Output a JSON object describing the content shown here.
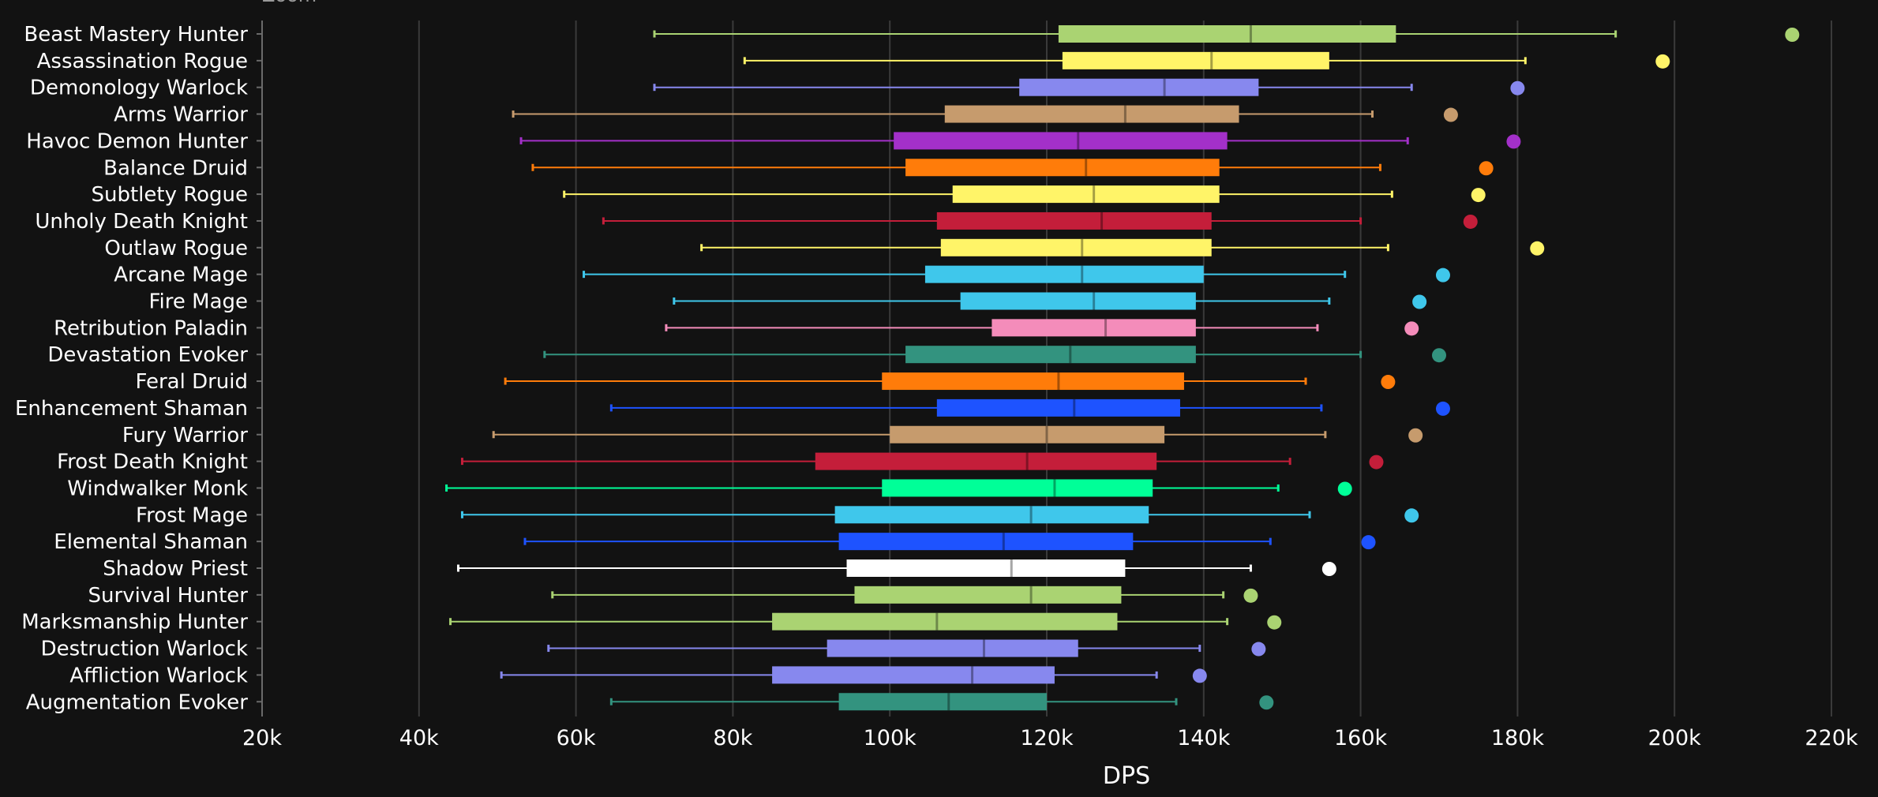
{
  "chart_data": {
    "type": "box",
    "title": "",
    "corner_label": "Zoom",
    "xlabel": "DPS",
    "ylabel": "",
    "xlim": [
      20000,
      220000
    ],
    "xticks": [
      20000,
      40000,
      60000,
      80000,
      100000,
      120000,
      140000,
      160000,
      180000,
      200000,
      220000
    ],
    "xtick_labels": [
      "20k",
      "40k",
      "60k",
      "80k",
      "100k",
      "120k",
      "140k",
      "160k",
      "180k",
      "200k",
      "220k"
    ],
    "grid": true,
    "series": [
      {
        "name": "Beast Mastery Hunter",
        "color": "#aad372",
        "min": 70000,
        "q1": 121500,
        "median": 146000,
        "q3": 164500,
        "max": 192500,
        "outlier": 215000
      },
      {
        "name": "Assassination Rogue",
        "color": "#fff468",
        "min": 81500,
        "q1": 122000,
        "median": 141000,
        "q3": 156000,
        "max": 181000,
        "outlier": 198500
      },
      {
        "name": "Demonology Warlock",
        "color": "#8788ee",
        "min": 70000,
        "q1": 116500,
        "median": 135000,
        "q3": 147000,
        "max": 166500,
        "outlier": 180000
      },
      {
        "name": "Arms Warrior",
        "color": "#c69b6d",
        "min": 52000,
        "q1": 107000,
        "median": 130000,
        "q3": 144500,
        "max": 161500,
        "outlier": 171500
      },
      {
        "name": "Havoc Demon Hunter",
        "color": "#a330c9",
        "min": 53000,
        "q1": 100500,
        "median": 124000,
        "q3": 143000,
        "max": 166000,
        "outlier": 179500
      },
      {
        "name": "Balance Druid",
        "color": "#ff7c0a",
        "min": 54500,
        "q1": 102000,
        "median": 125000,
        "q3": 142000,
        "max": 162500,
        "outlier": 176000
      },
      {
        "name": "Subtlety Rogue",
        "color": "#fff468",
        "min": 58500,
        "q1": 108000,
        "median": 126000,
        "q3": 142000,
        "max": 164000,
        "outlier": 175000
      },
      {
        "name": "Unholy Death Knight",
        "color": "#c41e3a",
        "min": 63500,
        "q1": 106000,
        "median": 127000,
        "q3": 141000,
        "max": 160000,
        "outlier": 174000
      },
      {
        "name": "Outlaw Rogue",
        "color": "#fff468",
        "min": 76000,
        "q1": 106500,
        "median": 124500,
        "q3": 141000,
        "max": 163500,
        "outlier": 182500
      },
      {
        "name": "Arcane Mage",
        "color": "#3fc7eb",
        "min": 61000,
        "q1": 104500,
        "median": 124500,
        "q3": 140000,
        "max": 158000,
        "outlier": 170500
      },
      {
        "name": "Fire Mage",
        "color": "#3fc7eb",
        "min": 72500,
        "q1": 109000,
        "median": 126000,
        "q3": 139000,
        "max": 156000,
        "outlier": 167500
      },
      {
        "name": "Retribution Paladin",
        "color": "#f48cba",
        "min": 71500,
        "q1": 113000,
        "median": 127500,
        "q3": 139000,
        "max": 154500,
        "outlier": 166500
      },
      {
        "name": "Devastation Evoker",
        "color": "#33937f",
        "min": 56000,
        "q1": 102000,
        "median": 123000,
        "q3": 139000,
        "max": 160000,
        "outlier": 170000
      },
      {
        "name": "Feral Druid",
        "color": "#ff7c0a",
        "min": 51000,
        "q1": 99000,
        "median": 121500,
        "q3": 137500,
        "max": 153000,
        "outlier": 163500
      },
      {
        "name": "Enhancement Shaman",
        "color": "#1e53ff",
        "min": 64500,
        "q1": 106000,
        "median": 123500,
        "q3": 137000,
        "max": 155000,
        "outlier": 170500
      },
      {
        "name": "Fury Warrior",
        "color": "#c69b6d",
        "min": 49500,
        "q1": 100000,
        "median": 120000,
        "q3": 135000,
        "max": 155500,
        "outlier": 167000
      },
      {
        "name": "Frost Death Knight",
        "color": "#c41e3a",
        "min": 45500,
        "q1": 90500,
        "median": 117500,
        "q3": 134000,
        "max": 151000,
        "outlier": 162000
      },
      {
        "name": "Windwalker Monk",
        "color": "#00ff98",
        "min": 43500,
        "q1": 99000,
        "median": 121000,
        "q3": 133500,
        "max": 149500,
        "outlier": 158000
      },
      {
        "name": "Frost Mage",
        "color": "#3fc7eb",
        "min": 45500,
        "q1": 93000,
        "median": 118000,
        "q3": 133000,
        "max": 153500,
        "outlier": 166500
      },
      {
        "name": "Elemental Shaman",
        "color": "#1e53ff",
        "min": 53500,
        "q1": 93500,
        "median": 114500,
        "q3": 131000,
        "max": 148500,
        "outlier": 161000
      },
      {
        "name": "Shadow Priest",
        "color": "#ffffff",
        "min": 45000,
        "q1": 94500,
        "median": 115500,
        "q3": 130000,
        "max": 146000,
        "outlier": 156000
      },
      {
        "name": "Survival Hunter",
        "color": "#aad372",
        "min": 57000,
        "q1": 95500,
        "median": 118000,
        "q3": 129500,
        "max": 142500,
        "outlier": 146000
      },
      {
        "name": "Marksmanship Hunter",
        "color": "#aad372",
        "min": 44000,
        "q1": 85000,
        "median": 106000,
        "q3": 129000,
        "max": 143000,
        "outlier": 149000
      },
      {
        "name": "Destruction Warlock",
        "color": "#8788ee",
        "min": 56500,
        "q1": 92000,
        "median": 112000,
        "q3": 124000,
        "max": 139500,
        "outlier": 147000
      },
      {
        "name": "Affliction Warlock",
        "color": "#8788ee",
        "min": 50500,
        "q1": 85000,
        "median": 110500,
        "q3": 121000,
        "max": 134000,
        "outlier": 139500
      },
      {
        "name": "Augmentation Evoker",
        "color": "#33937f",
        "min": 64500,
        "q1": 93500,
        "median": 107500,
        "q3": 120000,
        "max": 136500,
        "outlier": 148000
      }
    ]
  }
}
